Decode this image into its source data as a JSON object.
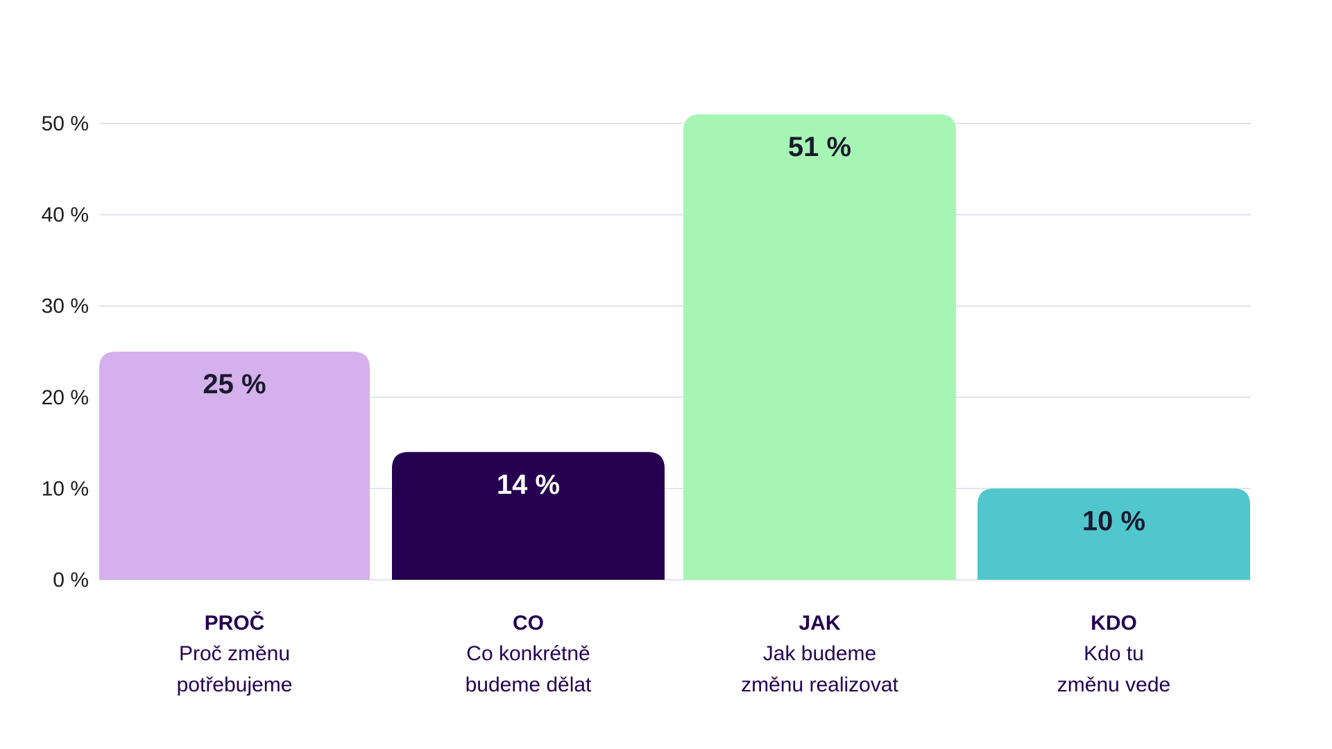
{
  "chart_data": {
    "type": "bar",
    "categories": [
      "PROČ",
      "CO",
      "JAK",
      "KDO"
    ],
    "descriptions": [
      [
        "Proč změnu",
        "potřebujeme"
      ],
      [
        "Co konkrétně",
        "budeme dělat"
      ],
      [
        "Jak budeme",
        "změnu realizovat"
      ],
      [
        "Kdo tu",
        "změnu vede"
      ]
    ],
    "values": [
      25,
      14,
      51,
      10
    ],
    "value_labels": [
      "25 %",
      "14 %",
      "51 %",
      "10 %"
    ],
    "bar_colors": [
      "#d4b0ec",
      "#250051",
      "#a7f5b5",
      "#50c7cd"
    ],
    "value_label_colors": [
      "#1a1a2e",
      "#ffffff",
      "#1a1a2e",
      "#1a1a2e"
    ],
    "ylim": [
      0,
      50
    ],
    "yticks": [
      0,
      10,
      20,
      30,
      40,
      50
    ],
    "ytick_labels": [
      "0 %",
      "10 %",
      "20 %",
      "30 %",
      "40 %",
      "50 %"
    ],
    "grid": true,
    "legend": false,
    "title": "",
    "xlabel": "",
    "ylabel": ""
  }
}
